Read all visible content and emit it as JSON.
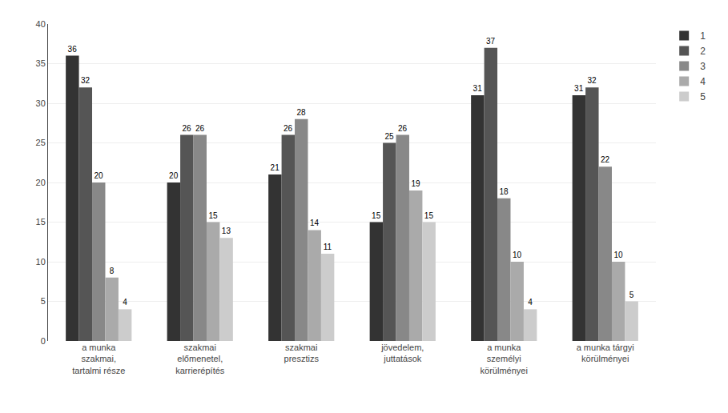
{
  "chart_data": {
    "type": "bar",
    "categories": [
      "a munka\nszakmai,\ntartalmi része",
      "szakmai\nelőmenetel,\nkarrierépítés",
      "szakmai\npresztizs",
      "jövedelem,\njuttatások",
      "a munka\nszemélyi\nkörülményei",
      "a munka tárgyi\nkörülményei"
    ],
    "series": [
      {
        "name": "1",
        "color": "#333333",
        "values": [
          36,
          20,
          21,
          15,
          31,
          31
        ]
      },
      {
        "name": "2",
        "color": "#555555",
        "values": [
          32,
          26,
          26,
          25,
          37,
          32
        ]
      },
      {
        "name": "3",
        "color": "#888888",
        "values": [
          20,
          26,
          28,
          26,
          18,
          22
        ]
      },
      {
        "name": "4",
        "color": "#aaaaaa",
        "values": [
          8,
          15,
          14,
          19,
          10,
          10
        ]
      },
      {
        "name": "5",
        "color": "#cccccc",
        "values": [
          4,
          13,
          11,
          15,
          4,
          5
        ]
      }
    ],
    "ylim": [
      0,
      40
    ],
    "yticks": [
      0,
      5,
      10,
      15,
      20,
      25,
      30,
      35,
      40
    ],
    "grid": true,
    "legend": "right",
    "data_labels": true
  }
}
